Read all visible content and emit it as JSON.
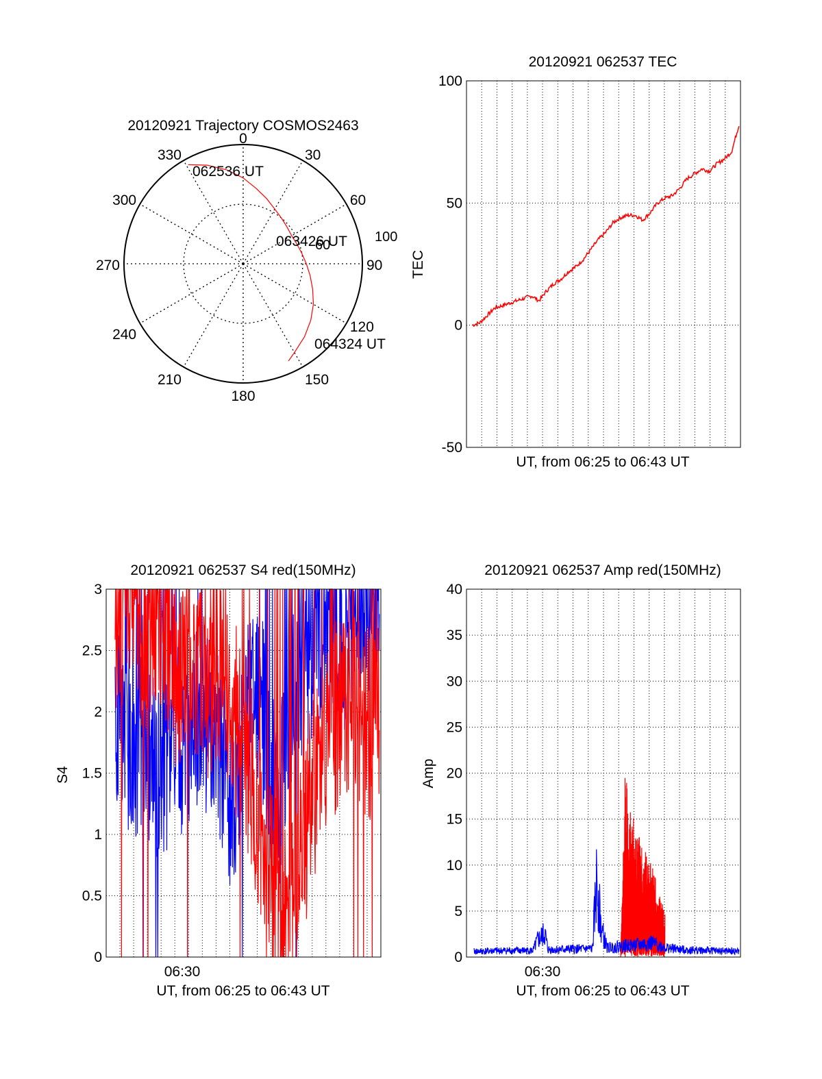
{
  "colors": {
    "red": "#ff0000",
    "blue": "#0000ff",
    "axis": "#000000",
    "grid": "#000000"
  },
  "chart_data": [
    {
      "type": "polar",
      "title": "20120921 Trajectory COSMOS2463",
      "angle_labels": [
        "0",
        "30",
        "60",
        "90",
        "120",
        "150",
        "180",
        "210",
        "240",
        "270",
        "300",
        "330"
      ],
      "radius_labels": [
        "60",
        "100"
      ],
      "track": {
        "azimuth": [
          331,
          340,
          350,
          0,
          10,
          20,
          30,
          40,
          50,
          60,
          70,
          80,
          90,
          100,
          110,
          120,
          130,
          140,
          150,
          155
        ],
        "radius": [
          95,
          88,
          80,
          72,
          64,
          58,
          53,
          50,
          48,
          47,
          48,
          50,
          53,
          57,
          62,
          68,
          74,
          80,
          86,
          90
        ]
      },
      "annotations": [
        "062536 UT",
        "063426 UT",
        "064324 UT"
      ]
    },
    {
      "type": "line",
      "title": "20120921 062537 TEC",
      "xlabel": "UT, from 06:25 to 06:43 UT",
      "ylabel": "TEC",
      "ylim": [
        -50,
        100
      ],
      "yticks": [
        "100",
        "50",
        "0",
        "-50"
      ],
      "grid": true,
      "series": [
        {
          "color": "red",
          "x": [
            0,
            0.5,
            1,
            1.5,
            2,
            2.5,
            3,
            3.5,
            4,
            4.5,
            5,
            5.5,
            6,
            6.5,
            7,
            7.5,
            8,
            8.5,
            9,
            9.5,
            10,
            10.5,
            11,
            11.5,
            12,
            12.5,
            13,
            13.5,
            14,
            14.5,
            15,
            15.5,
            16,
            16.5,
            17,
            17.5,
            18
          ],
          "y": [
            0,
            1,
            4,
            7,
            8,
            9,
            10,
            11,
            12,
            10,
            14,
            17,
            19,
            22,
            24,
            27,
            31,
            35,
            38,
            42,
            44,
            45,
            45,
            43,
            46,
            50,
            52,
            53,
            56,
            60,
            62,
            64,
            63,
            66,
            68,
            71,
            82
          ]
        }
      ]
    },
    {
      "type": "line",
      "title": "20120921 062537 S4 red(150MHz)",
      "xlabel": "UT, from 06:25 to 06:43 UT",
      "ylabel": "S4",
      "ylim": [
        0,
        3
      ],
      "yticks": [
        "3",
        "2.5",
        "2",
        "1.5",
        "1",
        "0.5",
        "0"
      ],
      "xtick_labels": [
        "06:30"
      ],
      "grid": true,
      "series": [
        {
          "color": "blue",
          "x": [
            0,
            1,
            2,
            3,
            4,
            5,
            6,
            7,
            8,
            9,
            10,
            11,
            12,
            13,
            14,
            15,
            16,
            17,
            18
          ],
          "y": [
            2.0,
            1.8,
            1.6,
            1.5,
            1.7,
            1.9,
            2.0,
            1.8,
            1.2,
            2.1,
            2.0,
            1.1,
            2.3,
            2.5,
            2.6,
            2.4,
            2.8,
            2.9,
            3.0
          ]
        },
        {
          "color": "red",
          "x": [
            0,
            1,
            2,
            3,
            4,
            5,
            6,
            7,
            8,
            9,
            10,
            11,
            12,
            13,
            14,
            15,
            16,
            17,
            18
          ],
          "y": [
            2.8,
            2.9,
            2.6,
            2.9,
            2.3,
            2.5,
            2.2,
            2.4,
            2.0,
            1.6,
            0.8,
            0.5,
            0.3,
            1.2,
            1.7,
            2.0,
            2.1,
            1.9,
            2.0
          ]
        }
      ]
    },
    {
      "type": "line",
      "title": "20120921 062537 Amp red(150MHz)",
      "xlabel": "UT, from 06:25 to 06:43 UT",
      "ylabel": "Amp",
      "ylim": [
        0,
        40
      ],
      "yticks": [
        "40",
        "35",
        "30",
        "25",
        "20",
        "15",
        "10",
        "5",
        "0"
      ],
      "xtick_labels": [
        "06:30"
      ],
      "grid": true,
      "series": [
        {
          "color": "blue",
          "x": [
            0,
            2,
            4,
            4.3,
            4.8,
            5,
            8,
            8.3,
            8.6,
            9,
            10,
            11,
            12,
            13,
            14,
            16,
            18
          ],
          "y": [
            0.6,
            0.7,
            0.7,
            1.8,
            2.5,
            0.8,
            0.9,
            8.5,
            3.0,
            1.0,
            1.2,
            1.3,
            1.5,
            1.0,
            0.8,
            0.7,
            0.6
          ]
        },
        {
          "color": "red",
          "x": [
            10,
            10.3,
            10.6,
            11,
            11.4,
            11.8,
            12.2,
            12.6,
            13
          ],
          "y": [
            0,
            20,
            18,
            14,
            13,
            11,
            10,
            7,
            5
          ]
        }
      ]
    }
  ]
}
